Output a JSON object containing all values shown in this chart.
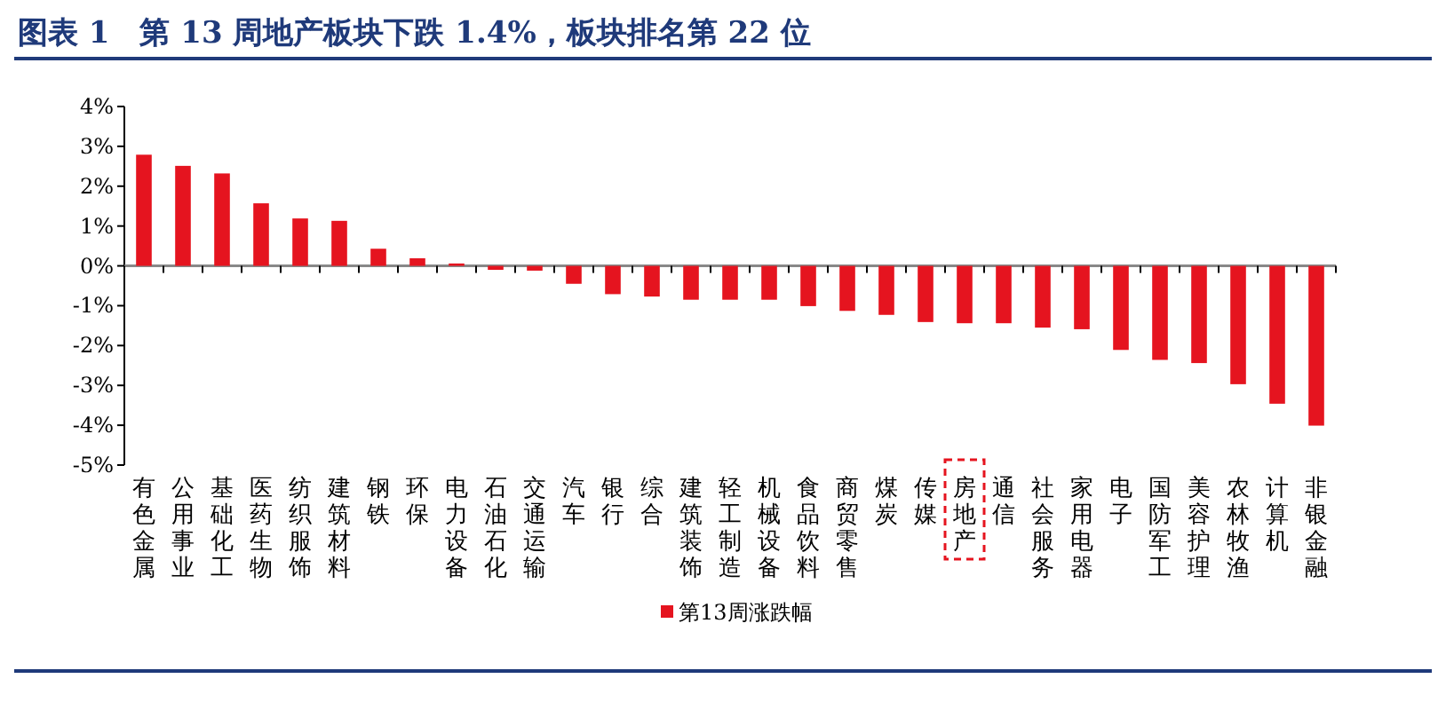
{
  "chart_data": {
    "type": "bar",
    "title": "图表 1　第 13 周地产板块下跌 1.4%，板块排名第 22 位",
    "categories": [
      "有色金属",
      "公用事业",
      "基础化工",
      "医药生物",
      "纺织服饰",
      "建筑材料",
      "钢铁",
      "环保",
      "电力设备",
      "石油石化",
      "交通运输",
      "汽车",
      "银行",
      "综合",
      "建筑装饰",
      "轻工制造",
      "机械设备",
      "食品饮料",
      "商贸零售",
      "煤炭",
      "传媒",
      "房地产",
      "通信",
      "社会服务",
      "家用电器",
      "电子",
      "国防军工",
      "美容护理",
      "农林牧渔",
      "计算机",
      "非银金融"
    ],
    "series": [
      {
        "name": "第13周涨跌幅",
        "color": "#e5141f",
        "values": [
          2.79,
          2.51,
          2.32,
          1.57,
          1.19,
          1.13,
          0.43,
          0.19,
          0.06,
          -0.1,
          -0.12,
          -0.45,
          -0.71,
          -0.77,
          -0.85,
          -0.85,
          -0.85,
          -1.01,
          -1.13,
          -1.23,
          -1.41,
          -1.44,
          -1.44,
          -1.55,
          -1.59,
          -2.11,
          -2.36,
          -2.44,
          -2.97,
          -3.46,
          -4.01
        ]
      }
    ],
    "ylim": [
      -5,
      4
    ],
    "yticks": [
      {
        "value": 4,
        "label": "4%"
      },
      {
        "value": 3,
        "label": "3%"
      },
      {
        "value": 2,
        "label": "2%"
      },
      {
        "value": 1,
        "label": "1%"
      },
      {
        "value": 0,
        "label": "0%"
      },
      {
        "value": -1,
        "label": "-1%"
      },
      {
        "value": -2,
        "label": "-2%"
      },
      {
        "value": -3,
        "label": "-3%"
      },
      {
        "value": -4,
        "label": "-4%"
      },
      {
        "value": -5,
        "label": "-5%"
      }
    ],
    "legend": "bottom"
  }
}
